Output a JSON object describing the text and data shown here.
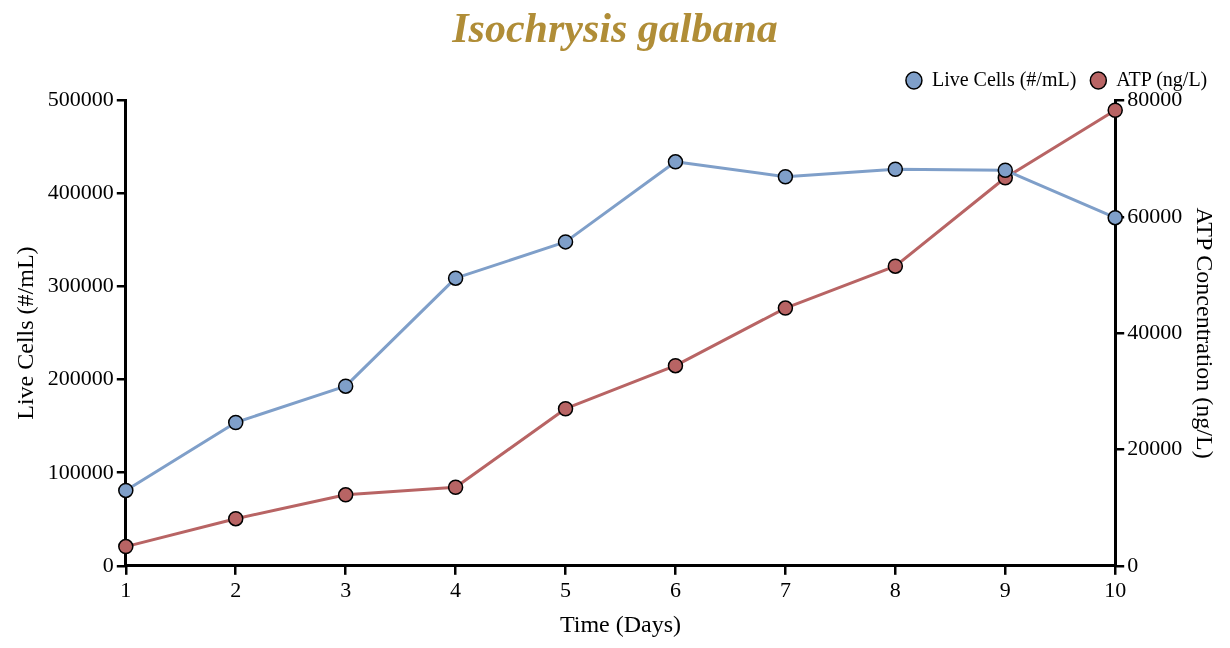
{
  "chart_data": {
    "type": "line",
    "title": "Isochrysis galbana",
    "xlabel": "Time (Days)",
    "ylabel": "Live Cells (#/mL)",
    "y2label": "ATP Concentration (ng/L)",
    "x": [
      1,
      2,
      3,
      4,
      5,
      6,
      7,
      8,
      9,
      10
    ],
    "series": [
      {
        "name": "Live Cells (#/mL)",
        "color": "#7f9fc9",
        "values": [
          81000,
          154000,
          193000,
          309000,
          348000,
          434000,
          418000,
          426000,
          425000,
          374000
        ]
      },
      {
        "name": "ATP (ng/L)",
        "color": "#b86464",
        "axis": "y2",
        "values": [
          3300,
          8100,
          12200,
          13500,
          27000,
          34400,
          44300,
          51500,
          66700,
          78300
        ]
      }
    ],
    "xlim": [
      1,
      10
    ],
    "xticks": [
      1,
      2,
      3,
      4,
      5,
      6,
      7,
      8,
      9,
      10
    ],
    "ylim": [
      0,
      500000
    ],
    "yticks": [
      0,
      100000,
      200000,
      300000,
      400000,
      500000
    ],
    "y2lim": [
      0,
      80000
    ],
    "y2ticks": [
      0,
      20000,
      40000,
      60000,
      80000
    ],
    "grid": false,
    "legend": "top right",
    "marker": "circle",
    "line_style": "solid"
  }
}
